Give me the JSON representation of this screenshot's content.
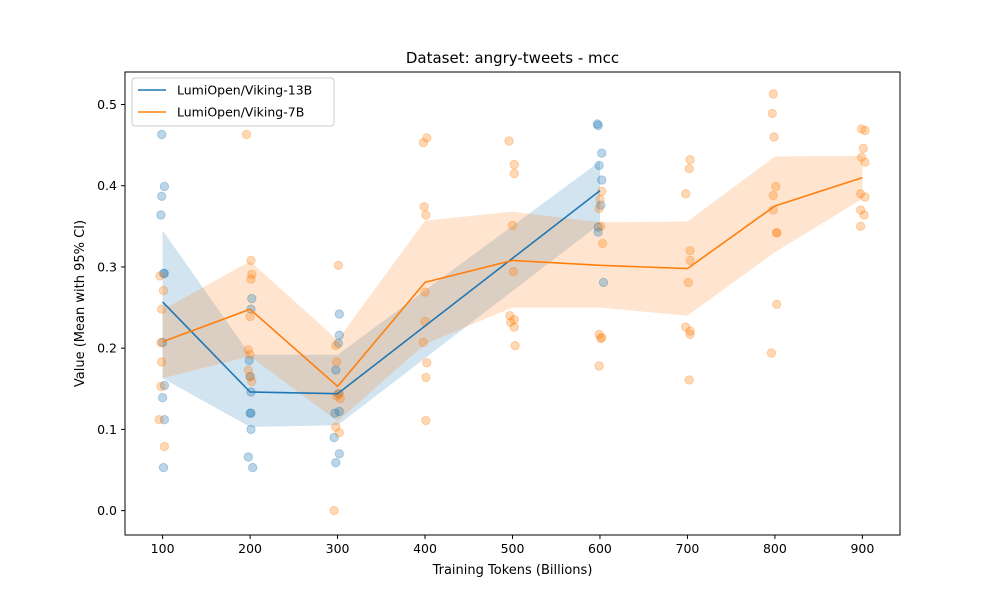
{
  "chart_data": {
    "type": "line",
    "title": "Dataset: angry-tweets - mcc",
    "xlabel": "Training Tokens (Billions)",
    "ylabel": "Value (Mean with 95% CI)",
    "xlim": [
      57,
      943
    ],
    "ylim": [
      -0.03,
      0.54
    ],
    "xticks": [
      100,
      200,
      300,
      400,
      500,
      600,
      700,
      800,
      900
    ],
    "yticks": [
      0.0,
      0.1,
      0.2,
      0.3,
      0.4,
      0.5
    ],
    "ytick_labels": [
      "0.0",
      "0.1",
      "0.2",
      "0.3",
      "0.4",
      "0.5"
    ],
    "grid": false,
    "legend_position": "upper-left",
    "series": [
      {
        "name": "LumiOpen/Viking-13B",
        "color": "#1f77b4",
        "x": [
          100,
          200,
          300,
          600
        ],
        "mean": [
          0.257,
          0.146,
          0.144,
          0.394
        ],
        "ci_low": [
          0.163,
          0.103,
          0.105,
          0.353
        ],
        "ci_high": [
          0.345,
          0.192,
          0.192,
          0.43
        ],
        "points": [
          [
            99,
            0.463
          ],
          [
            99,
            0.387
          ],
          [
            102,
            0.399
          ],
          [
            98,
            0.364
          ],
          [
            101,
            0.292
          ],
          [
            102,
            0.292
          ],
          [
            100,
            0.207
          ],
          [
            102,
            0.154
          ],
          [
            100,
            0.139
          ],
          [
            102,
            0.112
          ],
          [
            101,
            0.053
          ],
          [
            202,
            0.261
          ],
          [
            201,
            0.248
          ],
          [
            199,
            0.185
          ],
          [
            200,
            0.165
          ],
          [
            201,
            0.146
          ],
          [
            200,
            0.12
          ],
          [
            201,
            0.12
          ],
          [
            201,
            0.1
          ],
          [
            198,
            0.066
          ],
          [
            203,
            0.053
          ],
          [
            302,
            0.242
          ],
          [
            302,
            0.216
          ],
          [
            301,
            0.206
          ],
          [
            298,
            0.173
          ],
          [
            301,
            0.144
          ],
          [
            297,
            0.12
          ],
          [
            302,
            0.122
          ],
          [
            296,
            0.09
          ],
          [
            302,
            0.07
          ],
          [
            298,
            0.059
          ],
          [
            597,
            0.476
          ],
          [
            598,
            0.474
          ],
          [
            602,
            0.44
          ],
          [
            599,
            0.425
          ],
          [
            602,
            0.407
          ],
          [
            601,
            0.376
          ],
          [
            598,
            0.349
          ],
          [
            598,
            0.343
          ],
          [
            604,
            0.281
          ]
        ]
      },
      {
        "name": "LumiOpen/Viking-7B",
        "color": "#ff7f0e",
        "x": [
          100,
          200,
          300,
          400,
          500,
          600,
          700,
          800,
          900
        ],
        "mean": [
          0.208,
          0.248,
          0.153,
          0.281,
          0.308,
          0.302,
          0.298,
          0.375,
          0.41
        ],
        "ci_low": [
          0.163,
          0.19,
          0.11,
          0.205,
          0.25,
          0.25,
          0.24,
          0.318,
          0.384
        ],
        "ci_high": [
          0.247,
          0.307,
          0.21,
          0.357,
          0.368,
          0.355,
          0.356,
          0.436,
          0.437
        ],
        "points": [
          [
            97,
            0.289
          ],
          [
            101,
            0.271
          ],
          [
            99,
            0.248
          ],
          [
            98,
            0.207
          ],
          [
            99,
            0.183
          ],
          [
            98,
            0.153
          ],
          [
            96,
            0.112
          ],
          [
            102,
            0.079
          ],
          [
            196,
            0.463
          ],
          [
            201,
            0.308
          ],
          [
            202,
            0.291
          ],
          [
            201,
            0.285
          ],
          [
            200,
            0.239
          ],
          [
            198,
            0.198
          ],
          [
            200,
            0.192
          ],
          [
            198,
            0.173
          ],
          [
            200,
            0.165
          ],
          [
            202,
            0.159
          ],
          [
            301,
            0.302
          ],
          [
            298,
            0.203
          ],
          [
            299,
            0.183
          ],
          [
            302,
            0.144
          ],
          [
            299,
            0.141
          ],
          [
            303,
            0.138
          ],
          [
            298,
            0.103
          ],
          [
            302,
            0.096
          ],
          [
            296,
            0.0
          ],
          [
            398,
            0.453
          ],
          [
            402,
            0.459
          ],
          [
            399,
            0.374
          ],
          [
            401,
            0.364
          ],
          [
            400,
            0.269
          ],
          [
            400,
            0.233
          ],
          [
            398,
            0.207
          ],
          [
            402,
            0.182
          ],
          [
            401,
            0.164
          ],
          [
            401,
            0.111
          ],
          [
            496,
            0.455
          ],
          [
            502,
            0.426
          ],
          [
            502,
            0.415
          ],
          [
            500,
            0.351
          ],
          [
            501,
            0.294
          ],
          [
            497,
            0.24
          ],
          [
            502,
            0.235
          ],
          [
            498,
            0.232
          ],
          [
            502,
            0.226
          ],
          [
            503,
            0.203
          ],
          [
            602,
            0.393
          ],
          [
            600,
            0.383
          ],
          [
            599,
            0.372
          ],
          [
            601,
            0.35
          ],
          [
            603,
            0.329
          ],
          [
            599,
            0.217
          ],
          [
            602,
            0.213
          ],
          [
            601,
            0.212
          ],
          [
            599,
            0.178
          ],
          [
            703,
            0.432
          ],
          [
            702,
            0.421
          ],
          [
            698,
            0.39
          ],
          [
            703,
            0.32
          ],
          [
            703,
            0.308
          ],
          [
            701,
            0.281
          ],
          [
            698,
            0.226
          ],
          [
            703,
            0.221
          ],
          [
            703,
            0.217
          ],
          [
            702,
            0.161
          ],
          [
            798,
            0.513
          ],
          [
            797,
            0.489
          ],
          [
            799,
            0.46
          ],
          [
            801,
            0.399
          ],
          [
            798,
            0.388
          ],
          [
            798,
            0.37
          ],
          [
            802,
            0.342
          ],
          [
            802,
            0.342
          ],
          [
            802,
            0.254
          ],
          [
            796,
            0.194
          ],
          [
            899,
            0.47
          ],
          [
            903,
            0.468
          ],
          [
            901,
            0.446
          ],
          [
            899,
            0.435
          ],
          [
            903,
            0.429
          ],
          [
            898,
            0.39
          ],
          [
            903,
            0.386
          ],
          [
            898,
            0.37
          ],
          [
            902,
            0.364
          ],
          [
            898,
            0.35
          ]
        ]
      }
    ]
  }
}
